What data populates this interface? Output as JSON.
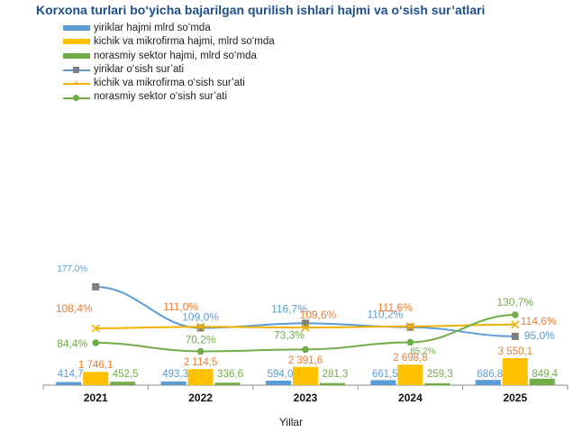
{
  "title": "Korxona turlari bo‘yicha bajarilgan qurilish ishlari hajmi va o‘sish sur’atlari",
  "colors": {
    "large_bar": "#5b9bd5",
    "small_bar": "#ffc000",
    "informal_bar": "#70ad47",
    "large_line": "#5b9bd5",
    "small_line": "#f0b000",
    "informal_line": "#70ad47",
    "large_label": "#5b9bd5",
    "small_label": "#ed7d31",
    "informal_label": "#70ad47",
    "marker_gray": "#7f7f7f"
  },
  "legend": [
    {
      "label": "yiriklar hajmi mlrd so‘mda",
      "kind": "bar",
      "color": "#5b9bd5"
    },
    {
      "label": "kichik va mikrofirma hajmi, mlrd so‘mda",
      "kind": "bar",
      "color": "#ffc000"
    },
    {
      "label": "norasmiy sektor hajmi, mlrd so‘mda",
      "kind": "bar",
      "color": "#70ad47"
    },
    {
      "label": "yiriklar o‘sish sur’ati",
      "kind": "line",
      "color": "#5b9bd5",
      "marker": "square"
    },
    {
      "label": "kichik va mikrofirma o‘sish sur’ati",
      "kind": "line",
      "color": "#f0b000",
      "marker": "x"
    },
    {
      "label": "norasmiy sektor o‘sish sur’ati",
      "kind": "line",
      "color": "#70ad47",
      "marker": "circle"
    }
  ],
  "chart_data": {
    "type": "bar",
    "title": "Korxona turlari bo‘yicha bajarilgan qurilish ishlari hajmi va o‘sish sur’atlari",
    "xlabel": "Yillar",
    "ylabel": "",
    "categories": [
      "2021",
      "2022",
      "2023",
      "2024",
      "2025"
    ],
    "legend_position": "top-left",
    "grid": false,
    "series": [
      {
        "name": "yiriklar hajmi mlrd so‘mda",
        "type": "bar",
        "values": [
          414.7,
          493.3,
          594.0,
          661.5,
          686.8
        ],
        "labels": [
          "414,7",
          "493,3",
          "594,0",
          "661,5",
          "686,8"
        ]
      },
      {
        "name": "kichik va mikrofirma hajmi, mlrd so‘mda",
        "type": "bar",
        "values": [
          1746.1,
          2114.5,
          2391.6,
          2698.8,
          3550.1
        ],
        "labels": [
          "1 746,1",
          "2 114,5",
          "2 391,6",
          "2 698,8",
          "3 550,1"
        ]
      },
      {
        "name": "norasmiy sektor hajmi, mlrd so‘mda",
        "type": "bar",
        "values": [
          452.5,
          336.6,
          281.3,
          259.3,
          849.4
        ],
        "labels": [
          "452,5",
          "336,6",
          "281,3",
          "259,3",
          "849,4"
        ]
      },
      {
        "name": "yiriklar o‘sish sur’ati",
        "type": "line",
        "values": [
          177.0,
          109.0,
          116.7,
          110.2,
          95.0
        ],
        "labels": [
          "177,0%",
          "109,0%",
          "116,7%",
          "110,2%",
          "95,0%"
        ]
      },
      {
        "name": "kichik va mikrofirma o‘sish sur’ati",
        "type": "line",
        "values": [
          108.4,
          111.0,
          109.6,
          111.6,
          114.6
        ],
        "labels": [
          "108,4%",
          "111,0%",
          "109,6%",
          "111,6%",
          "114,6%"
        ]
      },
      {
        "name": "norasmiy sektor o‘sish sur’ati",
        "type": "line",
        "values": [
          84.4,
          70.2,
          73.3,
          85.2,
          130.7
        ],
        "labels": [
          "84,4%",
          "70,2%",
          "73,3%",
          "85,2%",
          "130,7%"
        ]
      }
    ]
  }
}
